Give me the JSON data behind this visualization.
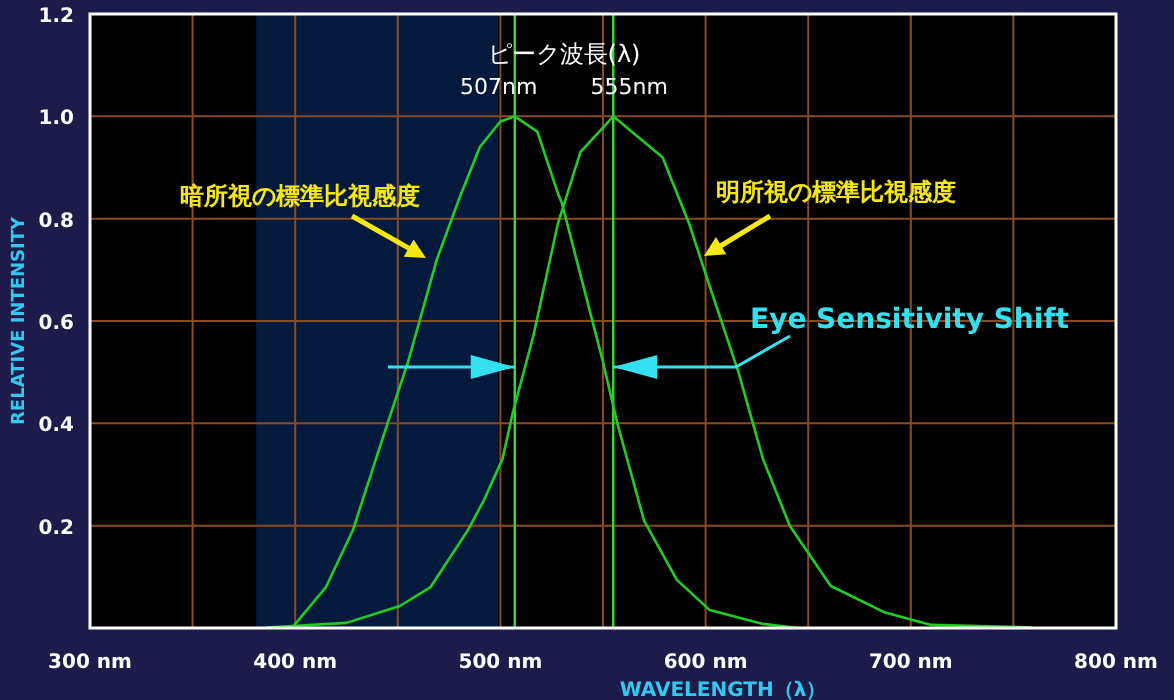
{
  "chart_data": {
    "type": "line",
    "xlabel": "WAVELENGTH（λ）",
    "ylabel": "RELATIVE  INTENSITY",
    "xlim": [
      300,
      800
    ],
    "ylim": [
      0,
      1.2
    ],
    "xticks": [
      {
        "value": 300,
        "label": "300 nm"
      },
      {
        "value": 350,
        "label": null
      },
      {
        "value": 400,
        "label": "400 nm"
      },
      {
        "value": 450,
        "label": null
      },
      {
        "value": 500,
        "label": "500 nm"
      },
      {
        "value": 550,
        "label": null
      },
      {
        "value": 600,
        "label": "600 nm"
      },
      {
        "value": 650,
        "label": null
      },
      {
        "value": 700,
        "label": "700 nm"
      },
      {
        "value": 750,
        "label": null
      },
      {
        "value": 800,
        "label": "800 nm"
      }
    ],
    "yticks": [
      {
        "value": 0,
        "label": null
      },
      {
        "value": 0.2,
        "label": "0.2"
      },
      {
        "value": 0.4,
        "label": "0.4"
      },
      {
        "value": 0.6,
        "label": "0.6"
      },
      {
        "value": 0.8,
        "label": "0.8"
      },
      {
        "value": 1.0,
        "label": "1.0"
      },
      {
        "value": 1.2,
        "label": "1.2"
      }
    ],
    "grid": true,
    "legend": false,
    "marker": "none",
    "line_style": "solid",
    "series": [
      {
        "name": "暗所視の標準比視感度",
        "color": "#22cc22",
        "x": [
          399,
          415,
          428,
          445,
          455,
          469,
          480,
          490,
          500,
          507,
          518,
          528,
          530,
          550,
          557,
          570,
          586,
          602,
          628,
          645
        ],
        "values": [
          0.003,
          0.08,
          0.19,
          0.4,
          0.52,
          0.72,
          0.84,
          0.94,
          0.99,
          1.0,
          0.97,
          0.85,
          0.83,
          0.52,
          0.4,
          0.21,
          0.094,
          0.035,
          0.008,
          0
        ]
      },
      {
        "name": "明所視の標準比視感度",
        "color": "#22cc22",
        "x": [
          386,
          425,
          451,
          466,
          484,
          492,
          501,
          506,
          516,
          528,
          539,
          555,
          579,
          592,
          601,
          616,
          628,
          641,
          661,
          687,
          710,
          759
        ],
        "values": [
          0.001,
          0.01,
          0.043,
          0.08,
          0.19,
          0.25,
          0.33,
          0.42,
          0.57,
          0.79,
          0.93,
          1.0,
          0.92,
          0.79,
          0.68,
          0.5,
          0.33,
          0.2,
          0.082,
          0.031,
          0.006,
          0.001
        ]
      }
    ],
    "ref_lines": [
      {
        "axis": "x",
        "value": 507,
        "label": "507nm",
        "color": "#33dd33"
      },
      {
        "axis": "x",
        "value": 555,
        "label": "555nm",
        "color": "#33dd33"
      }
    ],
    "bands": [
      {
        "axis": "x",
        "from": 381,
        "to": 499,
        "color": "#041a3c"
      }
    ],
    "annotations": [
      "ピーク波長(λ)",
      {
        "text": "Eye Sensitivity Shift",
        "x": 555,
        "y": 0.51
      }
    ]
  }
}
